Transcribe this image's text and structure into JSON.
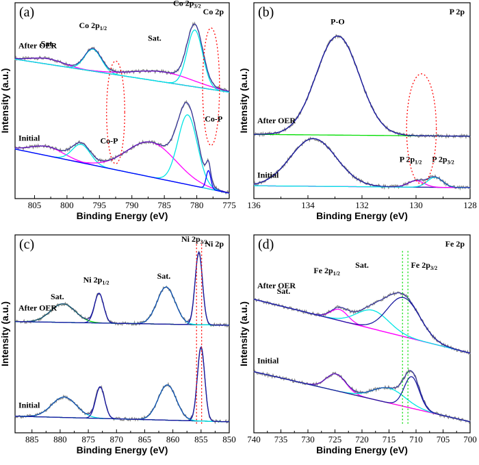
{
  "chart_data": [
    {
      "type": "line",
      "tag": "(a)",
      "title": "Co 2p",
      "xlabel": "Binding Energy (eV)",
      "ylabel": "Intensity (a.u.)",
      "xlim": [
        808,
        775
      ],
      "xticks": [
        805,
        800,
        795,
        790,
        785,
        780,
        775
      ],
      "sections": [
        {
          "name": "After OER",
          "baseline": {
            "left": 0.73,
            "right": 0.55
          },
          "background_color": "#000000",
          "peaks": [
            {
              "center": 803,
              "height": 0.03,
              "width": 2.5,
              "color": "#ff00ff"
            },
            {
              "center": 796.0,
              "height": 0.12,
              "width": 1.3,
              "color": "#00e5e5"
            },
            {
              "center": 785,
              "height": 0.055,
              "width": 4.5,
              "color": "#ff00ff"
            },
            {
              "center": 780.3,
              "height": 0.31,
              "width": 1.2,
              "color": "#00e5e5"
            }
          ],
          "annotations": [
            {
              "text": "Sat.",
              "x": 803,
              "y": 0.8
            },
            {
              "text": "Co 2p",
              "sub": "1/2",
              "x": 796,
              "y": 0.9
            },
            {
              "text": "Sat.",
              "x": 786.5,
              "y": 0.83
            },
            {
              "text": "Co 2p",
              "sub": "3/2",
              "x": 781.5,
              "y": 1.02
            }
          ]
        },
        {
          "name": "Initial",
          "baseline": {
            "left": 0.24,
            "right": 0.0
          },
          "background_color": "#1a1aa0",
          "peaks": [
            {
              "center": 803,
              "height": 0.05,
              "width": 2.5,
              "color": "#ff00ff"
            },
            {
              "center": 797.8,
              "height": 0.1,
              "width": 1.4,
              "color": "#00e5e5"
            },
            {
              "center": 787,
              "height": 0.19,
              "width": 3.8,
              "color": "#ff00ff"
            },
            {
              "center": 781.4,
              "height": 0.38,
              "width": 1.5,
              "color": "#00e5e5"
            },
            {
              "center": 778.2,
              "height": 0.1,
              "width": 0.35,
              "color": "#0000ff"
            }
          ],
          "annotations": [
            {
              "text": "Co-P",
              "x": 793.5,
              "y": 0.27
            },
            {
              "text": "Co-P",
              "x": 777.4,
              "y": 0.39
            }
          ]
        }
      ],
      "guides": [
        {
          "shape": "ellipse",
          "x": 792.5,
          "y": 0.44,
          "rx": 1.4,
          "ry": 0.28,
          "color": "#ff0000"
        },
        {
          "shape": "ellipse",
          "x": 777.8,
          "y": 0.58,
          "rx": 1.3,
          "ry": 0.32,
          "color": "#ff0000"
        }
      ]
    },
    {
      "type": "line",
      "tag": "(b)",
      "title": "P 2p",
      "xlabel": "Binding Energy (eV)",
      "ylabel": "Intensity (a.u.)",
      "xlim": [
        136,
        128
      ],
      "xticks": [
        136,
        134,
        132,
        130,
        128
      ],
      "sections": [
        {
          "name": "After OER",
          "baseline": {
            "left": 0.32,
            "right": 0.31
          },
          "background_color": "#00dd00",
          "peaks": [
            {
              "center": 132.9,
              "height": 0.54,
              "width": 0.8,
              "color": "#1a1aa0"
            }
          ],
          "annotations": [
            {
              "text": "P-O",
              "x": 132.9,
              "y": 0.92
            }
          ]
        },
        {
          "name": "Initial",
          "baseline": {
            "left": 0.04,
            "right": 0.03
          },
          "background_color": "#ff00ff",
          "peaks": [
            {
              "center": 133.8,
              "height": 0.26,
              "width": 0.85,
              "color": "#1a1aa0"
            },
            {
              "center": 130.0,
              "height": 0.035,
              "width": 0.3,
              "color": "#ff00ff"
            },
            {
              "center": 129.3,
              "height": 0.055,
              "width": 0.28,
              "color": "#00e5e5"
            }
          ],
          "annotations": [
            {
              "text": "P 2p",
              "sub": "1/2",
              "x": 130.2,
              "y": 0.17
            },
            {
              "text": "P 2p",
              "sub": "3/2",
              "x": 129.0,
              "y": 0.17
            }
          ]
        }
      ],
      "guides": [
        {
          "shape": "ellipse",
          "x": 129.8,
          "y": 0.35,
          "rx": 0.55,
          "ry": 0.3,
          "color": "#ff0000"
        }
      ]
    },
    {
      "type": "line",
      "tag": "(c)",
      "title": "Ni 2p",
      "xlabel": "Binding Energy (eV)",
      "ylabel": "Intensity (a.u.)",
      "xlim": [
        888,
        850
      ],
      "xticks": [
        885,
        880,
        875,
        870,
        865,
        860,
        855,
        850
      ],
      "sections": [
        {
          "name": "After OER",
          "baseline": {
            "left": 0.57,
            "right": 0.55
          },
          "background_color": "#00dd00",
          "peaks": [
            {
              "center": 879.5,
              "height": 0.1,
              "width": 2.2,
              "color": "#00dd00"
            },
            {
              "center": 873.1,
              "height": 0.16,
              "width": 0.8,
              "color": "#1a1aa0"
            },
            {
              "center": 861.2,
              "height": 0.2,
              "width": 1.6,
              "color": "#00e5e5"
            },
            {
              "center": 855.4,
              "height": 0.39,
              "width": 0.65,
              "color": "#1a1aa0"
            }
          ],
          "annotations": [
            {
              "text": "Sat.",
              "x": 880.5,
              "y": 0.69
            },
            {
              "text": "Ni 2p",
              "sub": "1/2",
              "x": 873.6,
              "y": 0.78
            },
            {
              "text": "Sat.",
              "x": 861.6,
              "y": 0.8
            },
            {
              "text": "Ni 2p",
              "sub": "3/2",
              "x": 856.2,
              "y": 1.0
            }
          ]
        },
        {
          "name": "Initial",
          "baseline": {
            "left": 0.06,
            "right": 0.03
          },
          "background_color": "#00dd00",
          "peaks": [
            {
              "center": 879.3,
              "height": 0.11,
              "width": 2.2,
              "color": "#00e5e5"
            },
            {
              "center": 872.9,
              "height": 0.17,
              "width": 0.8,
              "color": "#1a1aa0"
            },
            {
              "center": 861.0,
              "height": 0.19,
              "width": 1.6,
              "color": "#00e5e5"
            },
            {
              "center": 855.0,
              "height": 0.4,
              "width": 0.65,
              "color": "#1a1aa0"
            }
          ],
          "annotations": []
        }
      ],
      "guides": [
        {
          "shape": "vline",
          "x": 855.8,
          "y0": 0.02,
          "y1": 1.0,
          "color": "#ff0000"
        },
        {
          "shape": "vline",
          "x": 854.9,
          "y0": 0.02,
          "y1": 1.0,
          "color": "#ff0000"
        }
      ]
    },
    {
      "type": "line",
      "tag": "(d)",
      "title": "Fe 2p",
      "xlabel": "Binding Energy (eV)",
      "ylabel": "Intensity (a.u.)",
      "xlim": [
        740,
        700
      ],
      "xticks": [
        740,
        735,
        730,
        725,
        720,
        715,
        710,
        705,
        700
      ],
      "sections": [
        {
          "name": "After OER",
          "baseline": {
            "left": 0.69,
            "right": 0.4
          },
          "background_color": "#ff00ff",
          "peaks": [
            {
              "center": 724.2,
              "height": 0.06,
              "width": 1.6,
              "color": "#ff00ff"
            },
            {
              "center": 718.0,
              "height": 0.1,
              "width": 3.0,
              "color": "#00e5e5"
            },
            {
              "center": 712.3,
              "height": 0.21,
              "width": 3.0,
              "color": "#1a1aa0"
            }
          ],
          "annotations": [
            {
              "text": "Sat.",
              "x": 734.5,
              "y": 0.72
            },
            {
              "text": "Fe 2p",
              "sub": "1/2",
              "x": 726.5,
              "y": 0.83
            },
            {
              "text": "Sat.",
              "x": 720,
              "y": 0.86
            },
            {
              "text": "Fe 2p",
              "sub": "3/2",
              "x": 708.5,
              "y": 0.86
            }
          ]
        },
        {
          "name": "Initial",
          "baseline": {
            "left": 0.3,
            "right": 0.03
          },
          "background_color": "#ff8c00",
          "peaks": [
            {
              "center": 724.8,
              "height": 0.09,
              "width": 1.8,
              "color": "#ff00ff"
            },
            {
              "center": 715.0,
              "height": 0.08,
              "width": 3.0,
              "color": "#00e5e5"
            },
            {
              "center": 710.8,
              "height": 0.17,
              "width": 1.4,
              "color": "#1a1aa0"
            }
          ],
          "annotations": []
        }
      ],
      "guides": [
        {
          "shape": "vline",
          "x": 712.5,
          "y0": 0.02,
          "y1": 0.95,
          "color": "#00dd00"
        },
        {
          "shape": "vline",
          "x": 711.5,
          "y0": 0.02,
          "y1": 0.95,
          "color": "#00dd00"
        }
      ]
    }
  ]
}
